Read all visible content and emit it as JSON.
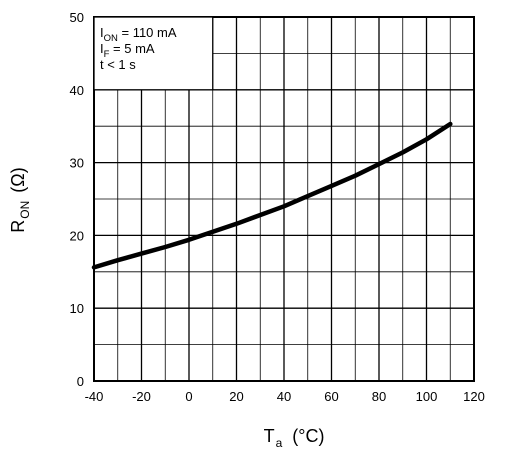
{
  "chart_data": {
    "type": "line",
    "xlabel": {
      "main": "T",
      "sub": "a",
      "unit": "(°C)"
    },
    "ylabel": {
      "main": "R",
      "sub": "ON",
      "unit": "(Ω)"
    },
    "xlim": [
      -40,
      120
    ],
    "ylim": [
      0,
      50
    ],
    "x_ticks": [
      -40,
      -20,
      0,
      20,
      40,
      60,
      80,
      100,
      120
    ],
    "y_ticks": [
      0,
      10,
      20,
      30,
      40,
      50
    ],
    "x_minor_step": 10,
    "y_minor_step": 5,
    "grid": true,
    "annotation": [
      {
        "main": "I",
        "sub": "ON",
        "rest": " = 110 mA"
      },
      {
        "main": "I",
        "sub": "F",
        "rest": " = 5 mA"
      },
      {
        "main": "t < 1 s",
        "sub": "",
        "rest": ""
      }
    ],
    "series": [
      {
        "x": [
          -40,
          -30,
          -20,
          -10,
          0,
          10,
          20,
          30,
          40,
          50,
          60,
          70,
          80,
          90,
          100,
          110
        ],
        "y": [
          15.6,
          16.6,
          17.5,
          18.4,
          19.4,
          20.5,
          21.6,
          22.8,
          24.0,
          25.4,
          26.8,
          28.2,
          29.8,
          31.4,
          33.2,
          35.3
        ]
      }
    ]
  }
}
